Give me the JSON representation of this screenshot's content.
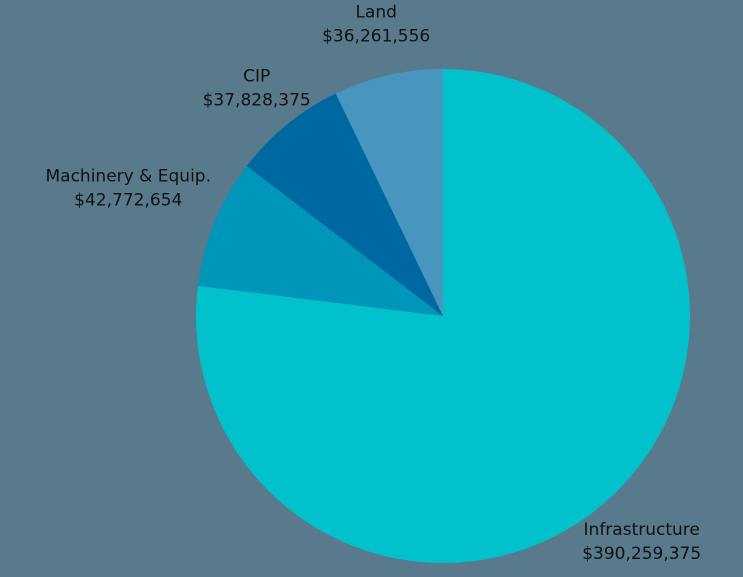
{
  "chart_data": {
    "type": "pie",
    "categories": [
      "Infrastructure",
      "Machinery & Equip.",
      "CIP",
      "Land"
    ],
    "values": [
      390259375,
      42772654,
      37828375,
      36261556
    ],
    "value_labels": [
      "$390,259,375",
      "$42,772,654",
      "$37,828,375",
      "$36,261,556"
    ],
    "colors": [
      "#00c1cc",
      "#0096b9",
      "#0068a1",
      "#4896c0"
    ]
  }
}
